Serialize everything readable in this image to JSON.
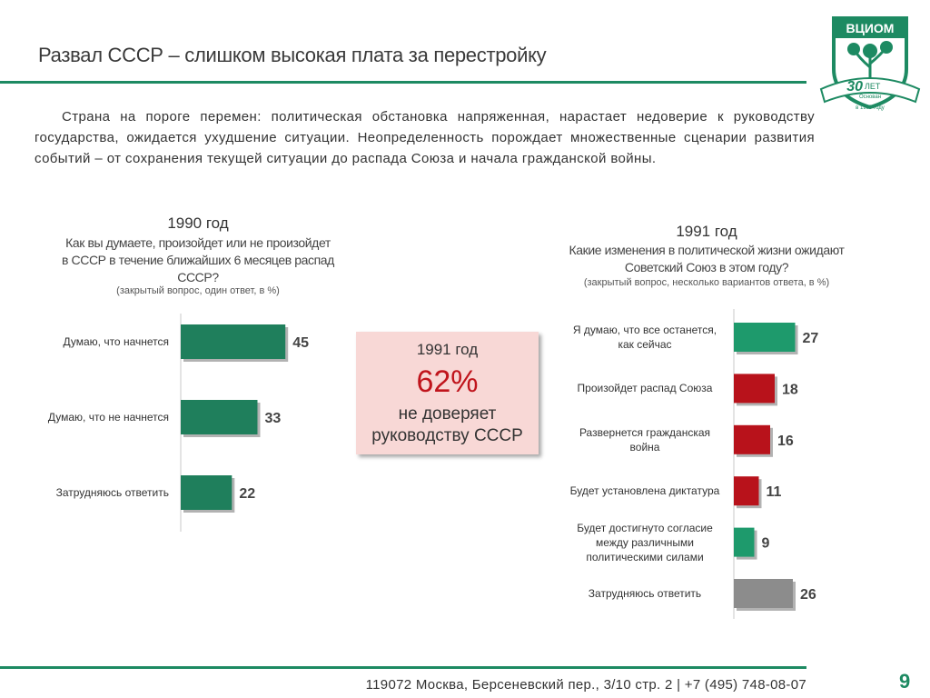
{
  "header": {
    "title": "Развал СССР – слишком высокая плата за перестройку",
    "logo": "ВЦИОМ",
    "logo_years": "30",
    "logo_years_word": "ЛЕТ",
    "logo_founded": "Основан",
    "logo_since": "в 1987 году"
  },
  "intro": "Страна на пороге перемен: политическая обстановка напряженная, нарастает недоверие к руководству государства, ожидается ухудшение ситуации. Неопределенность порождает множественные сценарии развития событий – от сохранения текущей ситуации до распада Союза и начала гражданской войны.",
  "chart_data": [
    {
      "type": "bar",
      "orientation": "horizontal",
      "title": "1990 год",
      "subtitle": "Как вы думаете, произойдет или не произойдет в СССР в течение ближайших 6 месяцев распад СССР?",
      "note": "(закрытый вопрос, один ответ, в %)",
      "categories": [
        "Думаю, что начнется",
        "Думаю, что не начнется",
        "Затрудняюсь ответить"
      ],
      "values": [
        45,
        33,
        22
      ],
      "color": "#1f7f5c"
    },
    {
      "type": "bar",
      "orientation": "horizontal",
      "title": "1991 год",
      "subtitle": "Какие изменения в политической жизни ожидают Советский Союз в этом году?",
      "note": "(закрытый вопрос, несколько вариантов ответа, в %)",
      "categories": [
        "Я думаю, что все останется, как сейчас",
        "Произойдет распад Союза",
        "Развернется гражданская война",
        "Будет установлена диктатура",
        "Будет достигнуто согласие между различными политическими силами",
        "Затрудняюсь ответить"
      ],
      "values": [
        27,
        18,
        16,
        11,
        9,
        26
      ],
      "colors": [
        "#1e9a6c",
        "#b8121b",
        "#b8121b",
        "#b8121b",
        "#1e9a6c",
        "#8c8c8c"
      ]
    }
  ],
  "callout": {
    "year": "1991 год",
    "value": "62%",
    "text": "не доверяет руководству СССР"
  },
  "footer": {
    "address": "119072 Москва, Берсеневский пер., 3/10 стр. 2  |  +7 (495) 748-08-07",
    "page": "9"
  }
}
